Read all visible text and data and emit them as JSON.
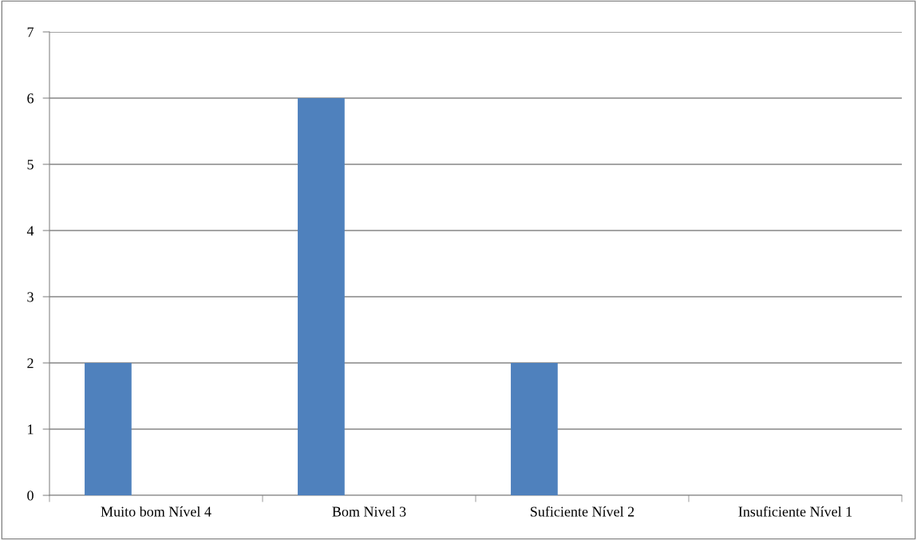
{
  "chart_data": {
    "type": "bar",
    "categories": [
      "Muito bom Nível 4",
      "Bom Nivel 3",
      "Suficiente Nível 2",
      "Insuficiente Nível 1"
    ],
    "values": [
      2,
      6,
      2,
      0
    ],
    "color": "#4f81bd",
    "ylim": [
      0,
      7
    ],
    "yticks": [
      0,
      1,
      2,
      3,
      4,
      5,
      6,
      7
    ],
    "grid": "y",
    "legend": false
  }
}
